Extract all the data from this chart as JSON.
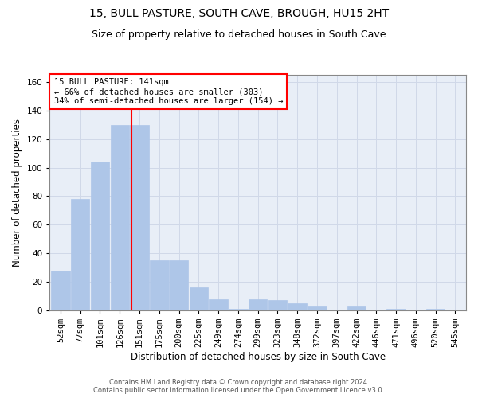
{
  "title": "15, BULL PASTURE, SOUTH CAVE, BROUGH, HU15 2HT",
  "subtitle": "Size of property relative to detached houses in South Cave",
  "xlabel": "Distribution of detached houses by size in South Cave",
  "ylabel": "Number of detached properties",
  "footer_line1": "Contains HM Land Registry data © Crown copyright and database right 2024.",
  "footer_line2": "Contains public sector information licensed under the Open Government Licence v3.0.",
  "annotation_line1": "15 BULL PASTURE: 141sqm",
  "annotation_line2": "← 66% of detached houses are smaller (303)",
  "annotation_line3": "34% of semi-detached houses are larger (154) →",
  "bar_labels": [
    "52sqm",
    "77sqm",
    "101sqm",
    "126sqm",
    "151sqm",
    "175sqm",
    "200sqm",
    "225sqm",
    "249sqm",
    "274sqm",
    "299sqm",
    "323sqm",
    "348sqm",
    "372sqm",
    "397sqm",
    "422sqm",
    "446sqm",
    "471sqm",
    "496sqm",
    "520sqm",
    "545sqm"
  ],
  "bar_values": [
    28,
    78,
    104,
    130,
    130,
    35,
    35,
    16,
    8,
    1,
    8,
    7,
    5,
    3,
    0,
    3,
    0,
    1,
    0,
    1,
    0
  ],
  "bar_color": "#aec6e8",
  "bar_edgecolor": "#aec6e8",
  "grid_color": "#d0d8e8",
  "background_color": "#e8eef7",
  "vline_color": "red",
  "vline_x": 3.6,
  "ylim": [
    0,
    165
  ],
  "yticks": [
    0,
    20,
    40,
    60,
    80,
    100,
    120,
    140,
    160
  ],
  "annotation_box_facecolor": "white",
  "annotation_box_edgecolor": "red",
  "title_fontsize": 10,
  "subtitle_fontsize": 9,
  "tick_fontsize": 7.5,
  "ylabel_fontsize": 8.5,
  "xlabel_fontsize": 8.5,
  "annotation_fontsize": 7.5,
  "footer_fontsize": 6.0
}
